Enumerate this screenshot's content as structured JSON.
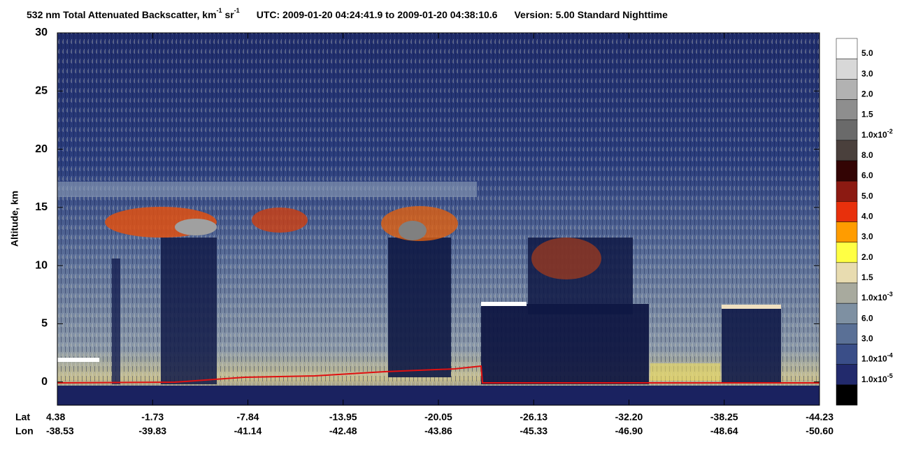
{
  "chart_data": {
    "type": "curtain",
    "title": {
      "name": "532 nm Total Attenuated Backscatter, km",
      "exp1": "-1",
      "unit2": " sr",
      "exp2": "-1",
      "time": "UTC:  2009-01-20 04:24:41.9  to  2009-01-20 04:38:10.6",
      "version": "Version: 5.00  Standard  Nighttime"
    },
    "y_label": "Altitude, km",
    "ylim": [
      -2,
      30
    ],
    "yticks": [
      0,
      5,
      10,
      15,
      20,
      25,
      30
    ],
    "lat_title": "Lat",
    "lon_title": "Lon",
    "lat_labels": [
      "4.38",
      "-1.73",
      "-7.84",
      "-13.95",
      "-20.05",
      "-26.13",
      "-32.20",
      "-38.25",
      "-44.23"
    ],
    "lon_labels": [
      "-38.53",
      "-39.83",
      "-41.14",
      "-42.48",
      "-43.86",
      "-45.33",
      "-46.90",
      "-48.64",
      "-50.60"
    ],
    "colorbar": {
      "colors": [
        "#ffffff",
        "#d8d8d8",
        "#b2b2b2",
        "#8e8e8e",
        "#6a6a6a",
        "#4a403c",
        "#330404",
        "#8c1a12",
        "#e8300c",
        "#ff9c00",
        "#ffff44",
        "#e8dcb0",
        "#a8aa9e",
        "#7e90a2",
        "#5a7096",
        "#3a4e88",
        "#222a6c",
        "#000000"
      ],
      "labels": [
        {
          "text": "5.0"
        },
        {
          "text": "3.0"
        },
        {
          "text": "2.0"
        },
        {
          "text": "1.5"
        },
        {
          "text": "1.0x10",
          "sup": "-2"
        },
        {
          "text": "8.0"
        },
        {
          "text": "6.0"
        },
        {
          "text": "5.0"
        },
        {
          "text": "4.0"
        },
        {
          "text": "3.0"
        },
        {
          "text": "2.0"
        },
        {
          "text": "1.5"
        },
        {
          "text": "1.0x10",
          "sup": "-3"
        },
        {
          "text": "6.0"
        },
        {
          "text": "3.0"
        },
        {
          "text": "1.0x10",
          "sup": "-4"
        },
        {
          "text": "1.0x10",
          "sup": "-5"
        }
      ]
    }
  }
}
